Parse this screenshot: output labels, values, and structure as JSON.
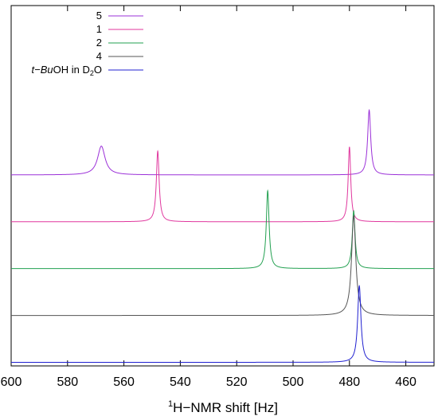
{
  "chart_data": {
    "type": "line",
    "xlabel_sup": "1",
    "xlabel_main": "H−NMR shift [Hz]",
    "xlim": [
      600,
      450
    ],
    "x_ticks": [
      600,
      580,
      560,
      540,
      520,
      500,
      480,
      460
    ],
    "grid": false,
    "legend_position": "top-left",
    "series": [
      {
        "name": "5",
        "legend_parts": [
          {
            "text": "5",
            "style": "normal",
            "sub": false
          }
        ],
        "color": "#9B30D8",
        "baseline": 0.4,
        "peaks": [
          {
            "x": 568,
            "height": 1.0,
            "width": 1.6
          },
          {
            "x": 473,
            "height": 2.25,
            "width": 0.65
          }
        ]
      },
      {
        "name": "1",
        "legend_parts": [
          {
            "text": "1",
            "style": "normal",
            "sub": false
          }
        ],
        "color": "#E0379E",
        "baseline": 0.27,
        "peaks": [
          {
            "x": 548,
            "height": 2.45,
            "width": 0.6
          },
          {
            "x": 480,
            "height": 2.6,
            "width": 0.55
          }
        ]
      },
      {
        "name": "2",
        "legend_parts": [
          {
            "text": "2",
            "style": "normal",
            "sub": false
          }
        ],
        "color": "#22A050",
        "baseline": 0.14,
        "peaks": [
          {
            "x": 509,
            "height": 2.7,
            "width": 0.6
          },
          {
            "x": 478.5,
            "height": 2.0,
            "width": 0.6
          }
        ]
      },
      {
        "name": "4",
        "legend_parts": [
          {
            "text": "4",
            "style": "normal",
            "sub": false
          }
        ],
        "color": "#555555",
        "baseline": 0.01,
        "peaks": [
          {
            "x": 478.5,
            "height": 3.45,
            "width": 0.9
          }
        ]
      },
      {
        "name": "t−BuOH in D2O",
        "legend_parts": [
          {
            "text": "t−Bu",
            "style": "italic",
            "sub": false
          },
          {
            "text": "OH in D",
            "style": "normal",
            "sub": false
          },
          {
            "text": "2",
            "style": "normal",
            "sub": true
          },
          {
            "text": "O",
            "style": "normal",
            "sub": false
          }
        ],
        "color": "#2020D0",
        "baseline": -0.12,
        "peaks": [
          {
            "x": 476.5,
            "height": 2.65,
            "width": 0.7
          }
        ]
      }
    ]
  }
}
